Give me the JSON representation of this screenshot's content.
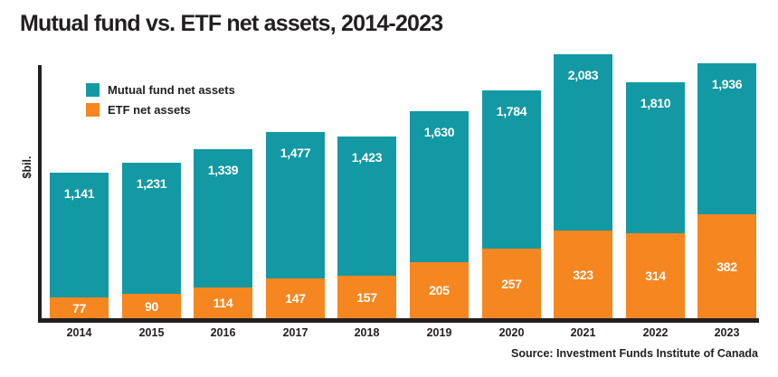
{
  "title": "Mutual fund vs. ETF net assets, 2014-2023",
  "y_axis_label": "$bil.",
  "source": "Source: Investment Funds Institute of Canada",
  "colors": {
    "mutual_fund": "#1399a3",
    "etf": "#f6861f",
    "axis": "#231f20",
    "value_label_text": "#ffffff"
  },
  "legend": {
    "items": [
      {
        "label": "Mutual fund net assets",
        "color": "#1399a3"
      },
      {
        "label": "ETF net assets",
        "color": "#f6861f"
      }
    ]
  },
  "chart_data": {
    "type": "bar",
    "stacked": true,
    "title": "Mutual fund vs. ETF net assets, 2014-2023",
    "xlabel": "",
    "ylabel": "$bil.",
    "categories": [
      "2014",
      "2015",
      "2016",
      "2017",
      "2018",
      "2019",
      "2020",
      "2021",
      "2022",
      "2023"
    ],
    "series": [
      {
        "name": "Mutual fund net assets",
        "color": "#1399a3",
        "values": [
          1141,
          1231,
          1339,
          1477,
          1423,
          1630,
          1784,
          2083,
          1810,
          1936
        ]
      },
      {
        "name": "ETF net assets",
        "color": "#f6861f",
        "values": [
          77,
          90,
          114,
          147,
          157,
          205,
          257,
          323,
          314,
          382
        ]
      }
    ],
    "value_labels": true,
    "grid": false,
    "legend_position": "top-left",
    "axis_ticks_visible": false
  }
}
